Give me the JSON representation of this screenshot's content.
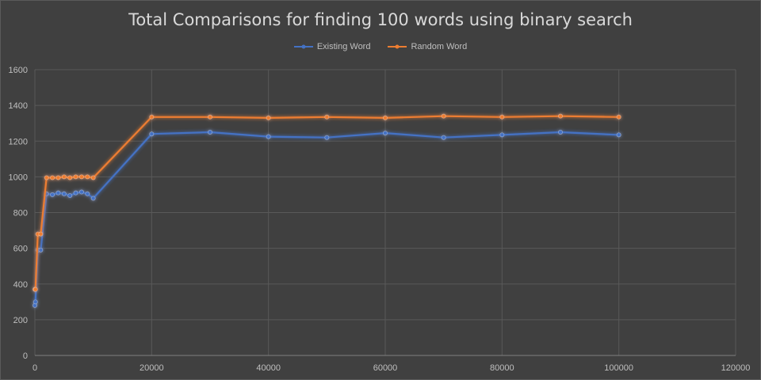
{
  "chart_data": {
    "type": "line",
    "title": "Total Comparisons for  finding 100 words using binary search",
    "xlabel": "",
    "ylabel": "",
    "xlim": [
      0,
      120000
    ],
    "ylim": [
      0,
      1600
    ],
    "x_ticks": [
      "0",
      "20000",
      "40000",
      "60000",
      "80000",
      "100000",
      "120000"
    ],
    "y_ticks": [
      "0",
      "200",
      "400",
      "600",
      "800",
      "1000",
      "1200",
      "1400",
      "1600"
    ],
    "grid": true,
    "legend_position": "top",
    "series": [
      {
        "name": "Existing Word",
        "color": "#4472c4",
        "points": [
          [
            0,
            280
          ],
          [
            100,
            300
          ],
          [
            500,
            590
          ],
          [
            1000,
            590
          ],
          [
            2000,
            905
          ],
          [
            3000,
            900
          ],
          [
            4000,
            910
          ],
          [
            5000,
            905
          ],
          [
            6000,
            895
          ],
          [
            7000,
            910
          ],
          [
            8000,
            915
          ],
          [
            9000,
            905
          ],
          [
            10000,
            880
          ],
          [
            20000,
            1240
          ],
          [
            30000,
            1250
          ],
          [
            40000,
            1225
          ],
          [
            50000,
            1220
          ],
          [
            60000,
            1245
          ],
          [
            70000,
            1220
          ],
          [
            80000,
            1235
          ],
          [
            90000,
            1250
          ],
          [
            100000,
            1235
          ]
        ]
      },
      {
        "name": "Random Word",
        "color": "#ed7d31",
        "points": [
          [
            0,
            370
          ],
          [
            100,
            370
          ],
          [
            500,
            680
          ],
          [
            1000,
            680
          ],
          [
            2000,
            995
          ],
          [
            3000,
            995
          ],
          [
            4000,
            995
          ],
          [
            5000,
            1000
          ],
          [
            6000,
            995
          ],
          [
            7000,
            1000
          ],
          [
            8000,
            1000
          ],
          [
            9000,
            1000
          ],
          [
            10000,
            995
          ],
          [
            20000,
            1335
          ],
          [
            30000,
            1335
          ],
          [
            40000,
            1330
          ],
          [
            50000,
            1335
          ],
          [
            60000,
            1330
          ],
          [
            70000,
            1340
          ],
          [
            80000,
            1335
          ],
          [
            90000,
            1340
          ],
          [
            100000,
            1335
          ]
        ]
      }
    ]
  }
}
